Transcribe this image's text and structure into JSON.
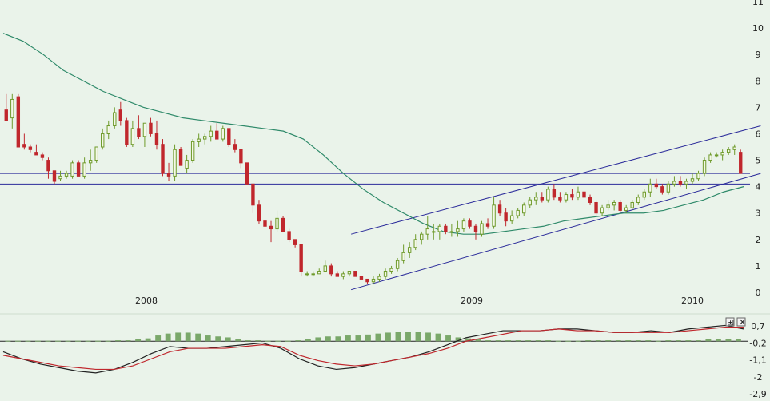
{
  "chart_data": [
    {
      "type": "candlestick",
      "x_axis_labels": [
        "2008",
        "2009",
        "2010"
      ],
      "y_ticks": [
        0,
        1,
        2,
        3,
        4,
        5,
        6,
        7,
        8,
        9,
        10,
        11
      ],
      "ylim": [
        0,
        11
      ],
      "colors": {
        "up": "#6e9a2a",
        "down": "#c0272d",
        "moving_average": "#2f8a6a",
        "lines": "#2a2a9a"
      },
      "candles": [
        [
          6.9,
          7.5,
          6.5,
          6.5
        ],
        [
          6.6,
          7.5,
          6.2,
          7.3
        ],
        [
          7.4,
          7.5,
          5.5,
          5.5
        ],
        [
          5.6,
          6.0,
          5.4,
          5.5
        ],
        [
          5.5,
          5.6,
          5.3,
          5.4
        ],
        [
          5.3,
          5.6,
          5.2,
          5.2
        ],
        [
          5.2,
          5.3,
          5.0,
          5.1
        ],
        [
          5.0,
          5.1,
          4.3,
          4.6
        ],
        [
          4.6,
          4.6,
          4.1,
          4.2
        ],
        [
          4.3,
          4.6,
          4.2,
          4.4
        ],
        [
          4.4,
          4.6,
          4.3,
          4.5
        ],
        [
          4.4,
          5.0,
          4.3,
          4.9
        ],
        [
          4.9,
          5.0,
          4.4,
          4.4
        ],
        [
          4.4,
          5.1,
          4.3,
          4.9
        ],
        [
          4.9,
          5.4,
          4.6,
          5.0
        ],
        [
          5.0,
          5.5,
          4.9,
          5.5
        ],
        [
          5.5,
          6.2,
          5.4,
          6.0
        ],
        [
          6.0,
          6.5,
          5.8,
          6.3
        ],
        [
          6.3,
          7.0,
          6.2,
          6.8
        ],
        [
          6.9,
          7.2,
          6.3,
          6.5
        ],
        [
          6.5,
          6.6,
          5.5,
          5.6
        ],
        [
          5.6,
          6.5,
          5.5,
          6.2
        ],
        [
          6.2,
          6.7,
          5.8,
          5.9
        ],
        [
          5.9,
          6.4,
          5.5,
          6.4
        ],
        [
          6.4,
          6.6,
          5.9,
          6.0
        ],
        [
          6.0,
          6.5,
          5.4,
          5.6
        ],
        [
          5.6,
          5.8,
          4.4,
          4.5
        ],
        [
          4.5,
          4.9,
          4.2,
          4.4
        ],
        [
          4.4,
          5.6,
          4.2,
          5.4
        ],
        [
          5.4,
          5.5,
          4.8,
          4.8
        ],
        [
          4.7,
          5.2,
          4.5,
          5.0
        ],
        [
          5.0,
          5.8,
          4.9,
          5.7
        ],
        [
          5.7,
          6.0,
          5.5,
          5.8
        ],
        [
          5.8,
          6.0,
          5.6,
          5.9
        ],
        [
          5.9,
          6.3,
          5.7,
          6.1
        ],
        [
          6.1,
          6.4,
          5.8,
          5.8
        ],
        [
          5.8,
          6.3,
          5.7,
          6.2
        ],
        [
          6.2,
          6.2,
          5.5,
          5.6
        ],
        [
          5.6,
          5.8,
          5.3,
          5.4
        ],
        [
          5.4,
          5.4,
          4.7,
          4.9
        ],
        [
          4.9,
          4.9,
          4.1,
          4.1
        ],
        [
          4.1,
          4.1,
          3.0,
          3.3
        ],
        [
          3.3,
          3.5,
          2.6,
          2.7
        ],
        [
          2.7,
          3.0,
          2.3,
          2.5
        ],
        [
          2.5,
          2.7,
          1.9,
          2.4
        ],
        [
          2.4,
          3.1,
          2.3,
          2.8
        ],
        [
          2.8,
          2.9,
          2.3,
          2.3
        ],
        [
          2.3,
          2.4,
          1.9,
          2.0
        ],
        [
          2.0,
          2.0,
          1.7,
          1.8
        ],
        [
          1.8,
          1.8,
          0.6,
          0.8
        ],
        [
          0.7,
          0.8,
          0.6,
          0.7
        ],
        [
          0.7,
          0.8,
          0.6,
          0.7
        ],
        [
          0.7,
          0.9,
          0.7,
          0.8
        ],
        [
          0.8,
          1.2,
          0.8,
          1.0
        ],
        [
          1.0,
          1.1,
          0.6,
          0.7
        ],
        [
          0.7,
          0.8,
          0.6,
          0.6
        ],
        [
          0.6,
          0.8,
          0.5,
          0.7
        ],
        [
          0.7,
          0.8,
          0.6,
          0.8
        ],
        [
          0.8,
          0.8,
          0.6,
          0.6
        ],
        [
          0.6,
          0.6,
          0.5,
          0.5
        ],
        [
          0.5,
          0.5,
          0.3,
          0.4
        ],
        [
          0.4,
          0.6,
          0.3,
          0.5
        ],
        [
          0.5,
          0.7,
          0.4,
          0.6
        ],
        [
          0.6,
          0.9,
          0.5,
          0.8
        ],
        [
          0.8,
          1.0,
          0.7,
          0.9
        ],
        [
          0.9,
          1.3,
          0.8,
          1.2
        ],
        [
          1.2,
          1.8,
          1.1,
          1.5
        ],
        [
          1.5,
          1.9,
          1.3,
          1.7
        ],
        [
          1.7,
          2.2,
          1.6,
          2.0
        ],
        [
          2.0,
          2.3,
          1.8,
          2.2
        ],
        [
          2.2,
          2.9,
          2.0,
          2.4
        ],
        [
          2.3,
          2.6,
          2.0,
          2.3
        ],
        [
          2.3,
          2.6,
          2.0,
          2.5
        ],
        [
          2.5,
          2.6,
          2.2,
          2.3
        ],
        [
          2.3,
          2.6,
          2.1,
          2.3
        ],
        [
          2.3,
          2.7,
          2.1,
          2.4
        ],
        [
          2.4,
          2.8,
          2.3,
          2.7
        ],
        [
          2.7,
          2.8,
          2.4,
          2.5
        ],
        [
          2.5,
          2.6,
          2.0,
          2.3
        ],
        [
          2.2,
          2.7,
          2.1,
          2.6
        ],
        [
          2.6,
          2.8,
          2.4,
          2.5
        ],
        [
          2.5,
          3.6,
          2.4,
          3.3
        ],
        [
          3.3,
          3.5,
          2.9,
          3.0
        ],
        [
          3.0,
          3.2,
          2.5,
          2.7
        ],
        [
          2.7,
          3.1,
          2.6,
          2.9
        ],
        [
          2.9,
          3.2,
          2.8,
          3.1
        ],
        [
          3.0,
          3.4,
          2.9,
          3.3
        ],
        [
          3.3,
          3.6,
          3.2,
          3.5
        ],
        [
          3.5,
          3.8,
          3.3,
          3.6
        ],
        [
          3.6,
          3.8,
          3.4,
          3.5
        ],
        [
          3.5,
          4.0,
          3.4,
          3.9
        ],
        [
          3.9,
          4.1,
          3.5,
          3.6
        ],
        [
          3.6,
          3.8,
          3.4,
          3.5
        ],
        [
          3.5,
          3.8,
          3.4,
          3.7
        ],
        [
          3.7,
          3.9,
          3.5,
          3.6
        ],
        [
          3.6,
          4.0,
          3.5,
          3.8
        ],
        [
          3.8,
          3.9,
          3.5,
          3.6
        ],
        [
          3.6,
          3.7,
          3.3,
          3.4
        ],
        [
          3.4,
          3.5,
          2.9,
          3.0
        ],
        [
          3.0,
          3.3,
          2.9,
          3.2
        ],
        [
          3.2,
          3.5,
          3.1,
          3.3
        ],
        [
          3.3,
          3.5,
          3.1,
          3.4
        ],
        [
          3.4,
          3.5,
          3.0,
          3.1
        ],
        [
          3.1,
          3.3,
          3.0,
          3.2
        ],
        [
          3.2,
          3.5,
          3.1,
          3.4
        ],
        [
          3.4,
          3.7,
          3.3,
          3.6
        ],
        [
          3.6,
          3.9,
          3.5,
          3.8
        ],
        [
          3.8,
          4.3,
          3.6,
          4.1
        ],
        [
          4.1,
          4.3,
          3.9,
          4.0
        ],
        [
          4.0,
          4.1,
          3.7,
          3.8
        ],
        [
          3.8,
          4.2,
          3.7,
          4.1
        ],
        [
          4.1,
          4.4,
          4.0,
          4.2
        ],
        [
          4.2,
          4.4,
          4.0,
          4.1
        ],
        [
          4.1,
          4.3,
          3.9,
          4.2
        ],
        [
          4.2,
          4.5,
          4.1,
          4.3
        ],
        [
          4.3,
          4.6,
          4.2,
          4.5
        ],
        [
          4.5,
          5.1,
          4.4,
          5.0
        ],
        [
          5.0,
          5.3,
          4.9,
          5.2
        ],
        [
          5.2,
          5.3,
          5.1,
          5.2
        ],
        [
          5.2,
          5.4,
          5.0,
          5.3
        ],
        [
          5.3,
          5.5,
          5.2,
          5.4
        ],
        [
          5.4,
          5.6,
          5.2,
          5.5
        ],
        [
          5.3,
          5.4,
          4.5,
          4.5
        ]
      ],
      "moving_average": [
        9.8,
        9.5,
        9.0,
        8.4,
        8.0,
        7.6,
        7.3,
        7.0,
        6.8,
        6.6,
        6.5,
        6.4,
        6.3,
        6.2,
        6.1,
        5.8,
        5.2,
        4.5,
        3.9,
        3.4,
        3.0,
        2.6,
        2.3,
        2.2,
        2.2,
        2.3,
        2.4,
        2.5,
        2.7,
        2.8,
        2.9,
        3.0,
        3.0,
        3.1,
        3.3,
        3.5,
        3.8,
        4.0
      ],
      "channel_lines": [
        {
          "from": [
            2008.75,
            2.2
          ],
          "to": [
            2010.25,
            6.3
          ]
        },
        {
          "from": [
            2008.75,
            0.1
          ],
          "to": [
            2010.25,
            4.5
          ]
        }
      ],
      "horizontal_lines": [
        4.5,
        4.1
      ]
    },
    {
      "type": "macd",
      "y_ticks": [
        "0,7",
        "-0,2",
        "-1,1",
        "-2",
        "-2,9"
      ],
      "series": [
        {
          "values": [
            -0.6,
            -1.0,
            -1.3,
            -1.5,
            -1.7,
            -1.8,
            -1.6,
            -1.2,
            -0.7,
            -0.3,
            -0.4,
            -0.4,
            -0.3,
            -0.2,
            -0.1,
            -0.4,
            -1.0,
            -1.4,
            -1.6,
            -1.5,
            -1.3,
            -1.1,
            -0.9,
            -0.6,
            -0.2,
            0.2,
            0.4,
            0.6,
            0.6,
            0.6,
            0.7,
            0.7,
            0.6,
            0.5,
            0.5,
            0.6,
            0.5,
            0.7,
            0.8,
            0.9,
            0.7
          ]
        },
        {
          "values": [
            -0.8,
            -1.0,
            -1.2,
            -1.4,
            -1.5,
            -1.6,
            -1.6,
            -1.4,
            -1.0,
            -0.6,
            -0.4,
            -0.4,
            -0.4,
            -0.3,
            -0.2,
            -0.3,
            -0.8,
            -1.1,
            -1.3,
            -1.4,
            -1.3,
            -1.1,
            -0.9,
            -0.7,
            -0.4,
            0.0,
            0.2,
            0.4,
            0.6,
            0.6,
            0.7,
            0.6,
            0.6,
            0.5,
            0.5,
            0.5,
            0.5,
            0.6,
            0.7,
            0.8,
            0.8
          ]
        }
      ],
      "histogram": [
        0.05,
        0.05,
        0.05,
        0.05,
        0.05,
        0.05,
        0.05,
        0.05,
        0.05,
        0.05,
        0.05,
        0.1,
        0.1,
        0.2,
        0.3,
        0.6,
        0.8,
        0.9,
        0.9,
        0.8,
        0.6,
        0.5,
        0.4,
        0.2,
        0.1,
        0.1,
        0.05,
        0.05,
        0.05,
        0.1,
        0.2,
        0.4,
        0.5,
        0.5,
        0.6,
        0.6,
        0.7,
        0.8,
        0.9,
        1.0,
        1.0,
        1.0,
        0.9,
        0.8,
        0.6,
        0.4,
        0.3,
        0.2,
        0.1,
        0.1,
        0.1,
        0.1,
        0.1,
        0.1,
        0.1,
        0.05,
        0.05,
        0.05,
        0.1,
        0.1,
        0.1,
        0.1,
        0.1,
        0.1,
        0.1,
        0.05,
        0.1,
        0.1,
        0.1,
        0.1,
        0.2,
        0.2,
        0.2,
        0.2
      ]
    }
  ],
  "controls": {
    "expand_symbol": "⊞",
    "close_symbol": "✕"
  }
}
